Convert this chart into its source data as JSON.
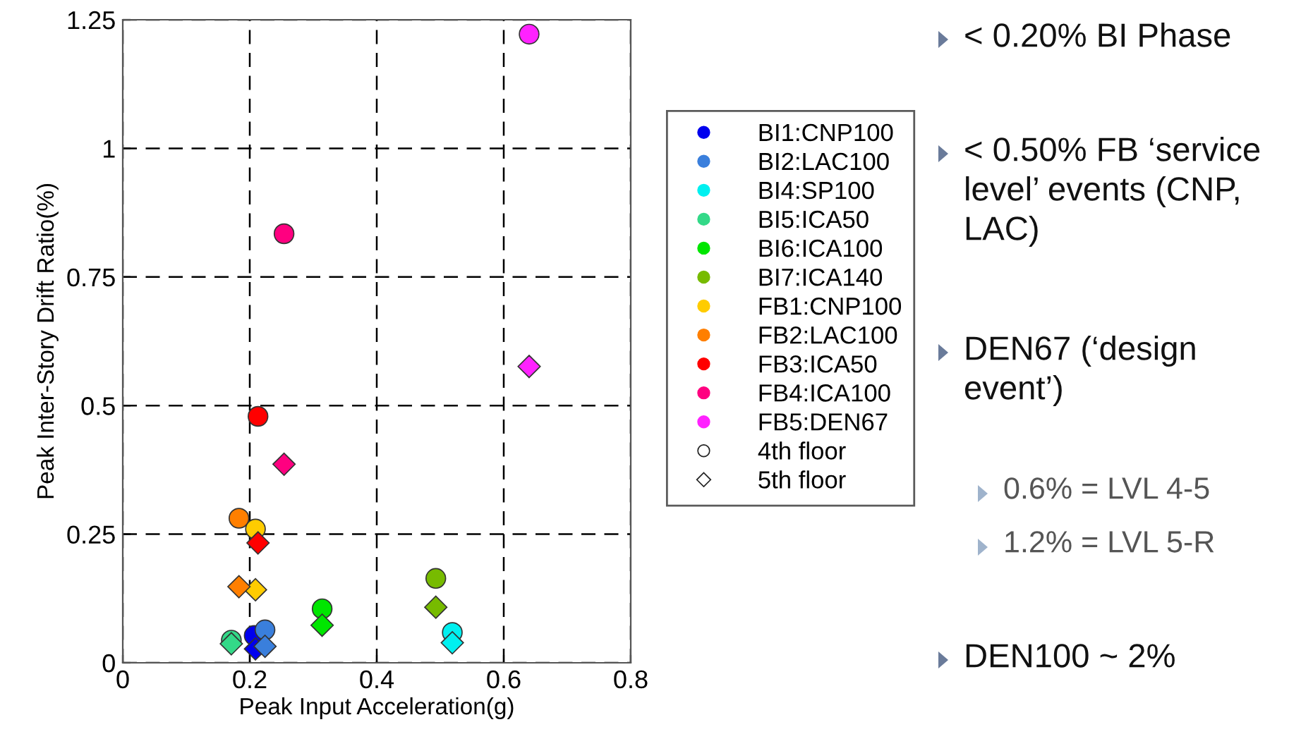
{
  "chart_data": {
    "type": "scatter",
    "xlabel": "Peak Input Acceleration(g)",
    "ylabel": "Peak Inter-Story Drift Ratio(%)",
    "xlim": [
      0,
      0.8
    ],
    "xticks": [
      0,
      0.2,
      0.4,
      0.6,
      0.8
    ],
    "ylim": [
      0,
      1.25
    ],
    "yticks": [
      0,
      0.25,
      0.5,
      0.75,
      1,
      1.25
    ],
    "grid": true,
    "legend": "right",
    "series": [
      {
        "name": "BI1:CNP100",
        "color": "#0000ee",
        "marker": "circle",
        "x": [
          0.207
        ],
        "values": [
          0.053
        ]
      },
      {
        "name": "BI2:LAC100",
        "color": "#3a7fdc",
        "marker": "circle",
        "x": [
          0.224
        ],
        "values": [
          0.064
        ]
      },
      {
        "name": "BI4:SP100",
        "color": "#00f0f0",
        "marker": "circle",
        "x": [
          0.519
        ],
        "values": [
          0.059
        ]
      },
      {
        "name": "BI5:ICA50",
        "color": "#33d988",
        "marker": "circle",
        "x": [
          0.171
        ],
        "values": [
          0.044
        ]
      },
      {
        "name": "BI6:ICA100",
        "color": "#00e600",
        "marker": "circle",
        "x": [
          0.314
        ],
        "values": [
          0.105
        ]
      },
      {
        "name": "BI7:ICA140",
        "color": "#77bb00",
        "marker": "circle",
        "x": [
          0.493
        ],
        "values": [
          0.164
        ]
      },
      {
        "name": "FB1:CNP100",
        "color": "#ffcc00",
        "marker": "circle",
        "x": [
          0.209
        ],
        "values": [
          0.26
        ]
      },
      {
        "name": "FB2:LAC100",
        "color": "#ff7f00",
        "marker": "circle",
        "x": [
          0.183
        ],
        "values": [
          0.281
        ]
      },
      {
        "name": "FB3:ICA50",
        "color": "#ff0000",
        "marker": "circle",
        "x": [
          0.213
        ],
        "values": [
          0.479
        ]
      },
      {
        "name": "FB4:ICA100",
        "color": "#ff0080",
        "marker": "circle",
        "x": [
          0.254
        ],
        "values": [
          0.834
        ]
      },
      {
        "name": "FB5:DEN67",
        "color": "#ff22ff",
        "marker": "circle",
        "x": [
          0.64
        ],
        "values": [
          1.222
        ]
      },
      {
        "name": "4th floor",
        "color": "#ffffff",
        "marker": "circle"
      },
      {
        "name": "5th floor",
        "color": "#ffffff",
        "marker": "diamond"
      },
      {
        "color": "#0000ee",
        "marker": "diamond",
        "x": [
          0.209
        ],
        "values": [
          0.027
        ]
      },
      {
        "color": "#3a7fdc",
        "marker": "diamond",
        "x": [
          0.224
        ],
        "values": [
          0.032
        ]
      },
      {
        "color": "#00f0f0",
        "marker": "diamond",
        "x": [
          0.519
        ],
        "values": [
          0.039
        ]
      },
      {
        "color": "#33d988",
        "marker": "diamond",
        "x": [
          0.171
        ],
        "values": [
          0.037
        ]
      },
      {
        "color": "#00e600",
        "marker": "diamond",
        "x": [
          0.314
        ],
        "values": [
          0.073
        ]
      },
      {
        "color": "#77bb00",
        "marker": "diamond",
        "x": [
          0.493
        ],
        "values": [
          0.108
        ]
      },
      {
        "color": "#ffcc00",
        "marker": "diamond",
        "x": [
          0.209
        ],
        "values": [
          0.142
        ]
      },
      {
        "color": "#ff7f00",
        "marker": "diamond",
        "x": [
          0.183
        ],
        "values": [
          0.148
        ]
      },
      {
        "color": "#ff0000",
        "marker": "diamond",
        "x": [
          0.213
        ],
        "values": [
          0.233
        ]
      },
      {
        "color": "#ff0080",
        "marker": "diamond",
        "x": [
          0.254
        ],
        "values": [
          0.386
        ]
      },
      {
        "color": "#ff22ff",
        "marker": "diamond",
        "x": [
          0.64
        ],
        "values": [
          0.576
        ]
      }
    ],
    "annotations": [
      "< 0.20% BI Phase",
      "< 0.50% FB ‘service\nlevel’ events (CNP,\nLAC)",
      "DEN67 (‘design\nevent’)",
      "0.6% = LVL 4-5",
      "1.2% = LVL 5-R",
      "DEN100 ~ 2%"
    ]
  }
}
